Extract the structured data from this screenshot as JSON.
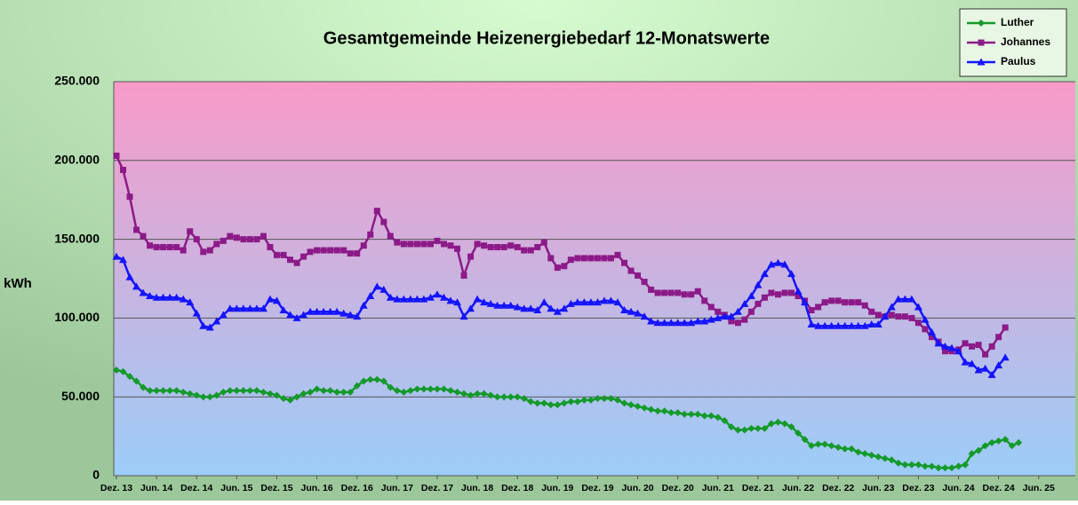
{
  "chart_data": {
    "type": "line",
    "title": "Gesamtgemeinde Heizenergiebedarf 12-Monatswerte",
    "ylabel": "kWh",
    "categories": [
      "Dez. 13",
      null,
      null,
      null,
      null,
      null,
      "Jun. 14",
      null,
      null,
      null,
      null,
      null,
      "Dez. 14",
      null,
      null,
      null,
      null,
      null,
      "Jun. 15",
      null,
      null,
      null,
      null,
      null,
      "Dez. 15",
      null,
      null,
      null,
      null,
      null,
      "Jun. 16",
      null,
      null,
      null,
      null,
      null,
      "Dez. 16",
      null,
      null,
      null,
      null,
      null,
      "Jun. 17",
      null,
      null,
      null,
      null,
      null,
      "Dez. 17",
      null,
      null,
      null,
      null,
      null,
      "Jun. 18",
      null,
      null,
      null,
      null,
      null,
      "Dez. 18",
      null,
      null,
      null,
      null,
      null,
      "Jun. 19",
      null,
      null,
      null,
      null,
      null,
      "Dez. 19",
      null,
      null,
      null,
      null,
      null,
      "Jun. 20",
      null,
      null,
      null,
      null,
      null,
      "Dez. 20",
      null,
      null,
      null,
      null,
      null,
      "Jun. 21",
      null,
      null,
      null,
      null,
      null,
      "Dez. 21",
      null,
      null,
      null,
      null,
      null,
      "Jun. 22",
      null,
      null,
      null,
      null,
      null,
      "Dez. 22",
      null,
      null,
      null,
      null,
      null,
      "Jun. 23",
      null,
      null,
      null,
      null,
      null,
      "Dez. 23",
      null,
      null,
      null,
      null,
      null,
      "Jun. 24",
      null,
      null,
      null,
      null,
      null,
      "Dez. 24",
      null,
      null,
      null,
      null,
      null,
      "Jun. 25"
    ],
    "series": [
      {
        "name": "Luther",
        "color": "#149a2a",
        "marker": "diamond",
        "values": [
          67000,
          66000,
          63000,
          60000,
          56000,
          54000,
          54000,
          54000,
          54000,
          54000,
          53000,
          52000,
          51000,
          50000,
          50000,
          51000,
          53000,
          54000,
          54000,
          54000,
          54000,
          54000,
          53000,
          52000,
          51000,
          49000,
          48000,
          50000,
          52000,
          53000,
          55000,
          54000,
          54000,
          53000,
          53000,
          53000,
          57000,
          60000,
          61000,
          61000,
          60000,
          56000,
          54000,
          53000,
          54000,
          55000,
          55000,
          55000,
          55000,
          55000,
          54000,
          53000,
          52000,
          51000,
          52000,
          52000,
          51000,
          50000,
          50000,
          50000,
          50000,
          49000,
          47000,
          46000,
          46000,
          45000,
          45000,
          46000,
          47000,
          47000,
          48000,
          48000,
          49000,
          49000,
          49000,
          48000,
          46000,
          45000,
          44000,
          43000,
          42000,
          41000,
          41000,
          40000,
          40000,
          39000,
          39000,
          39000,
          38000,
          38000,
          37000,
          35000,
          31000,
          29000,
          29000,
          30000,
          30000,
          30000,
          33000,
          34000,
          33000,
          31000,
          27000,
          23000,
          19000,
          20000,
          20000,
          19000,
          18000,
          17000,
          17000,
          15000,
          14000,
          13000,
          12000,
          11000,
          10000,
          8000,
          7000,
          7000,
          7000,
          6000,
          6000,
          5000,
          5000,
          5000,
          6000,
          7000,
          14000,
          16000,
          19000,
          21000,
          22000,
          23000,
          19000,
          21000,
          null,
          null,
          null
        ]
      },
      {
        "name": "Johannes",
        "color": "#8c1a88",
        "marker": "square",
        "values": [
          203000,
          194000,
          177000,
          156000,
          152000,
          146000,
          145000,
          145000,
          145000,
          145000,
          143000,
          155000,
          150000,
          142000,
          143000,
          147000,
          149000,
          152000,
          151000,
          150000,
          150000,
          150000,
          152000,
          145000,
          140000,
          140000,
          137000,
          135000,
          139000,
          142000,
          143000,
          143000,
          143000,
          143000,
          143000,
          141000,
          141000,
          146000,
          153000,
          168000,
          161000,
          152000,
          148000,
          147000,
          147000,
          147000,
          147000,
          147000,
          149000,
          147000,
          146000,
          144000,
          127000,
          139000,
          147000,
          146000,
          145000,
          145000,
          145000,
          146000,
          145000,
          143000,
          143000,
          145000,
          148000,
          138000,
          132000,
          133000,
          137000,
          138000,
          138000,
          138000,
          138000,
          138000,
          138000,
          140000,
          135000,
          130000,
          127000,
          123000,
          118000,
          116000,
          116000,
          116000,
          116000,
          115000,
          115000,
          117000,
          111000,
          107000,
          104000,
          102000,
          98000,
          97000,
          99000,
          104000,
          109000,
          113000,
          116000,
          115000,
          116000,
          116000,
          114000,
          111000,
          105000,
          107000,
          110000,
          111000,
          111000,
          110000,
          110000,
          110000,
          108000,
          104000,
          102000,
          101000,
          102000,
          101000,
          101000,
          100000,
          97000,
          93000,
          88000,
          85000,
          79000,
          79000,
          80000,
          84000,
          82000,
          83000,
          77000,
          82000,
          88000,
          94000,
          null,
          null,
          null,
          null,
          null
        ]
      },
      {
        "name": "Paulus",
        "color": "#1414ff",
        "marker": "triangle",
        "values": [
          139000,
          137000,
          126000,
          120000,
          116000,
          114000,
          113000,
          113000,
          113000,
          113000,
          112000,
          110000,
          103000,
          95000,
          94000,
          98000,
          102000,
          106000,
          106000,
          106000,
          106000,
          106000,
          106000,
          112000,
          111000,
          105000,
          102000,
          100000,
          102000,
          104000,
          104000,
          104000,
          104000,
          104000,
          103000,
          102000,
          101000,
          108000,
          114000,
          120000,
          118000,
          113000,
          112000,
          112000,
          112000,
          112000,
          112000,
          113000,
          115000,
          113000,
          111000,
          110000,
          101000,
          106000,
          112000,
          110000,
          109000,
          108000,
          108000,
          108000,
          107000,
          106000,
          106000,
          105000,
          110000,
          106000,
          104000,
          106000,
          109000,
          110000,
          110000,
          110000,
          110000,
          111000,
          111000,
          110000,
          105000,
          104000,
          103000,
          101000,
          98000,
          97000,
          97000,
          97000,
          97000,
          97000,
          97000,
          98000,
          98000,
          99000,
          100000,
          101000,
          101000,
          104000,
          109000,
          114000,
          121000,
          128000,
          134000,
          135000,
          134000,
          128000,
          117000,
          110000,
          96000,
          95000,
          95000,
          95000,
          95000,
          95000,
          95000,
          95000,
          95000,
          96000,
          96000,
          101000,
          107000,
          112000,
          112000,
          112000,
          107000,
          99000,
          91000,
          84000,
          82000,
          81000,
          79000,
          72000,
          71000,
          67000,
          68000,
          64000,
          70000,
          75000,
          null,
          null,
          null,
          null,
          null
        ]
      }
    ],
    "ylim": [
      0,
      250000
    ],
    "yticks": [
      0,
      {
        "value": 50000,
        "label": "50.000"
      },
      {
        "value": 100000,
        "label": "100.000"
      },
      {
        "value": 150000,
        "label": "150.000"
      },
      {
        "value": 200000,
        "label": "200.000"
      },
      {
        "value": 250000,
        "label": "250.000"
      }
    ],
    "grid": true,
    "legend": "top-right"
  }
}
